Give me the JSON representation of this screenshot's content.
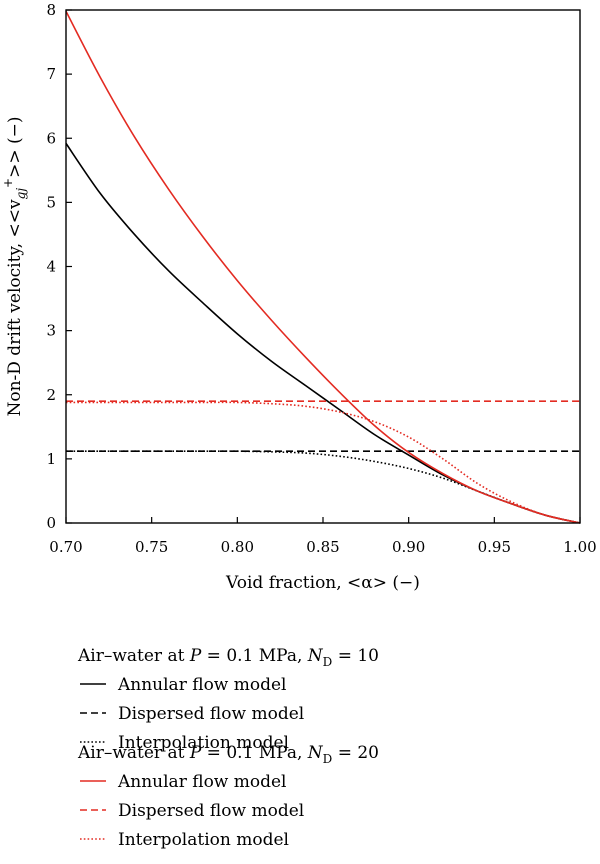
{
  "chart_data": {
    "type": "line",
    "xlabel": "Void fraction, <α> (−)",
    "ylabel": "Non-D drift velocity, <<v",
    "ylabel_sub": "gj",
    "ylabel_sup": "+",
    "ylabel_tail": ">> (−)",
    "xlim": [
      0.7,
      1.0
    ],
    "ylim": [
      0,
      8
    ],
    "xticks": [
      "0.70",
      "0.75",
      "0.80",
      "0.85",
      "0.90",
      "0.95",
      "1.00"
    ],
    "yticks": [
      "0",
      "1",
      "2",
      "3",
      "4",
      "5",
      "6",
      "7",
      "8"
    ],
    "x": [
      0.7,
      0.72,
      0.74,
      0.76,
      0.78,
      0.8,
      0.82,
      0.84,
      0.86,
      0.88,
      0.9,
      0.92,
      0.94,
      0.96,
      0.98,
      1.0
    ],
    "series": [
      {
        "group": 0,
        "name": "Annular flow model",
        "color": "#000000",
        "style": "solid",
        "values": [
          5.92,
          5.14,
          4.5,
          3.93,
          3.43,
          2.95,
          2.52,
          2.14,
          1.76,
          1.38,
          1.06,
          0.75,
          0.5,
          0.3,
          0.12,
          0.0
        ]
      },
      {
        "group": 0,
        "name": "Dispersed flow model",
        "color": "#000000",
        "style": "dashed",
        "values": [
          1.12,
          1.12,
          1.12,
          1.12,
          1.12,
          1.12,
          1.12,
          1.12,
          1.12,
          1.12,
          1.12,
          1.12,
          1.12,
          1.12,
          1.12,
          1.12
        ]
      },
      {
        "group": 0,
        "name": "Interpolation model",
        "color": "#000000",
        "style": "dotted",
        "values": [
          1.12,
          1.12,
          1.12,
          1.12,
          1.12,
          1.12,
          1.11,
          1.09,
          1.04,
          0.96,
          0.85,
          0.7,
          0.5,
          0.3,
          0.12,
          0.0
        ]
      },
      {
        "group": 1,
        "name": "Annular flow model",
        "color": "#e32b22",
        "style": "solid",
        "values": [
          7.98,
          6.95,
          6.02,
          5.2,
          4.46,
          3.78,
          3.16,
          2.58,
          2.03,
          1.52,
          1.1,
          0.77,
          0.5,
          0.3,
          0.12,
          0.0
        ]
      },
      {
        "group": 1,
        "name": "Dispersed flow model",
        "color": "#e32b22",
        "style": "dashed",
        "values": [
          1.9,
          1.9,
          1.9,
          1.9,
          1.9,
          1.9,
          1.9,
          1.9,
          1.9,
          1.9,
          1.9,
          1.9,
          1.9,
          1.9,
          1.9,
          1.9
        ]
      },
      {
        "group": 1,
        "name": "Interpolation model",
        "color": "#e32b22",
        "style": "dotted",
        "values": [
          1.88,
          1.88,
          1.88,
          1.88,
          1.88,
          1.88,
          1.86,
          1.82,
          1.73,
          1.58,
          1.34,
          1.0,
          0.62,
          0.33,
          0.12,
          0.0
        ]
      }
    ],
    "legend_groups": [
      {
        "title_prefix": "Air–water at ",
        "title_var": "P",
        "title_mid": " = 0.1 MPa, ",
        "title_var2": "N",
        "title_sub": "D",
        "title_value": " = 10"
      },
      {
        "title_prefix": "Air–water at ",
        "title_var": "P",
        "title_mid": " = 0.1 MPa, ",
        "title_var2": "N",
        "title_sub": "D",
        "title_value": " = 20"
      }
    ],
    "legend_placement": "below",
    "grid": false
  }
}
